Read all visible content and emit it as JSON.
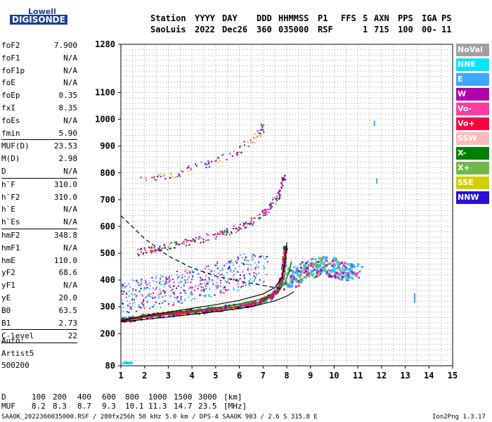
{
  "logo": {
    "line1": "Lowell",
    "line2": "DIGISONDE"
  },
  "header": {
    "labels": [
      "Station",
      "YYYY",
      "DAY",
      "DDD",
      "HHMMSS",
      "P1",
      "FFS",
      "S",
      "AXN",
      "PPS",
      "IGA",
      "PS"
    ],
    "values": [
      "SaoLuis",
      "2022",
      "Dec26",
      "360",
      "035000",
      "RSF",
      "1",
      "715",
      "100",
      "00-",
      "11"
    ]
  },
  "parameters": [
    [
      {
        "name": "foF2",
        "value": "7.900"
      },
      {
        "name": "foF1",
        "value": "N/A"
      },
      {
        "name": "foF1p",
        "value": "N/A"
      },
      {
        "name": "foE",
        "value": "N/A"
      },
      {
        "name": "foEp",
        "value": "0.35"
      },
      {
        "name": "fxI",
        "value": "8.35"
      },
      {
        "name": "foEs",
        "value": "N/A"
      },
      {
        "name": "fmin",
        "value": "5.90"
      }
    ],
    [
      {
        "name": "MUF(D)",
        "value": "23.53"
      },
      {
        "name": "M(D)",
        "value": "2.98"
      },
      {
        "name": "D",
        "value": "N/A"
      }
    ],
    [
      {
        "name": "h`F",
        "value": "310.0"
      },
      {
        "name": "h`F2",
        "value": "310.0"
      },
      {
        "name": "h`E",
        "value": "N/A"
      },
      {
        "name": "h`Es",
        "value": "N/A"
      }
    ],
    [
      {
        "name": "hmF2",
        "value": "348.8"
      },
      {
        "name": "hmF1",
        "value": "N/A"
      },
      {
        "name": "hmE",
        "value": "110.0"
      },
      {
        "name": "yF2",
        "value": "68.6"
      },
      {
        "name": "yF1",
        "value": "N/A"
      },
      {
        "name": "yE",
        "value": "20.0"
      },
      {
        "name": "B0",
        "value": "63.5"
      },
      {
        "name": "B1",
        "value": "2.73"
      }
    ],
    [
      {
        "name": "C-level",
        "value": "22"
      }
    ]
  ],
  "autoscaling": {
    "line1": "Auto:",
    "line2": "Artist5",
    "line3": "500200"
  },
  "legend": [
    {
      "label": "NoVal",
      "color": "#a0a0a0"
    },
    {
      "label": "NNE",
      "color": "#00e5ff"
    },
    {
      "label": "E",
      "color": "#3ba7ff"
    },
    {
      "label": "W",
      "color": "#b000a8"
    },
    {
      "label": "Vo-",
      "color": "#ff3ca0"
    },
    {
      "label": "Vo+",
      "color": "#ff0040"
    },
    {
      "label": "SSW",
      "color": "#ffb8b8"
    },
    {
      "label": "X-",
      "color": "#008000"
    },
    {
      "label": "X+",
      "color": "#6fb84a"
    },
    {
      "label": "SSE",
      "color": "#d0d000"
    },
    {
      "label": "NNW",
      "color": "#2a10d8"
    }
  ],
  "mufTable": {
    "dLabel": "D",
    "mufLabel": "MUF",
    "dValues": [
      "100",
      "200",
      "400",
      "600",
      "800",
      "1000",
      "1500",
      "3000",
      "[km]"
    ],
    "mufValues": [
      "8.2",
      "8.3",
      "8.7",
      "9.3",
      "10.1",
      "11.3",
      "14.7",
      "23.5",
      "[MHz]"
    ]
  },
  "footer": {
    "left": "SAAOK_2022360035000.RSF / 280fx256h 50 kHz 5.0 km / DPS-4 SAAOK 903 / 2.6 S 315.8 E",
    "right": "Ion2Png 1.3.17"
  },
  "chart_data": {
    "type": "scatter",
    "xlim": [
      1,
      15
    ],
    "ylim": [
      80,
      1280
    ],
    "xticks": [
      1,
      2,
      3,
      4,
      5,
      6,
      7,
      8,
      9,
      10,
      11,
      12,
      13,
      14,
      15
    ],
    "yticks": [
      80,
      200,
      300,
      400,
      500,
      600,
      700,
      800,
      900,
      1000,
      1100,
      1280
    ],
    "grid": true,
    "traces": {
      "o_trace": [
        [
          1.0,
          248
        ],
        [
          2.0,
          262
        ],
        [
          3.0,
          272
        ],
        [
          4.0,
          280
        ],
        [
          5.0,
          290
        ],
        [
          6.0,
          302
        ],
        [
          6.8,
          316
        ],
        [
          7.3,
          335
        ],
        [
          7.6,
          360
        ],
        [
          7.8,
          400
        ],
        [
          7.9,
          460
        ],
        [
          7.95,
          520
        ]
      ],
      "x_trace": [
        [
          1.0,
          252
        ],
        [
          2.0,
          266
        ],
        [
          3.0,
          276
        ],
        [
          4.0,
          286
        ],
        [
          5.0,
          296
        ],
        [
          6.0,
          310
        ],
        [
          7.0,
          330
        ],
        [
          7.5,
          350
        ],
        [
          7.9,
          385
        ],
        [
          8.1,
          430
        ],
        [
          8.2,
          470
        ]
      ],
      "model_upper": [
        [
          1.0,
          248
        ],
        [
          2.0,
          266
        ],
        [
          3.0,
          280
        ],
        [
          4.0,
          294
        ],
        [
          5.0,
          308
        ],
        [
          6.0,
          324
        ],
        [
          7.0,
          348
        ],
        [
          7.5,
          372
        ],
        [
          7.8,
          410
        ],
        [
          7.95,
          480
        ],
        [
          8.0,
          540
        ]
      ],
      "model_lower": [
        [
          1.0,
          244
        ],
        [
          3.0,
          262
        ],
        [
          5.0,
          282
        ],
        [
          6.5,
          300
        ],
        [
          7.5,
          322
        ],
        [
          8.0,
          340
        ],
        [
          8.3,
          356
        ]
      ],
      "dashed": [
        [
          1.0,
          640
        ],
        [
          2.0,
          555
        ],
        [
          3.0,
          490
        ],
        [
          4.0,
          445
        ],
        [
          5.0,
          415
        ],
        [
          6.0,
          395
        ],
        [
          7.0,
          380
        ],
        [
          7.9,
          365
        ]
      ],
      "echo_2nd": [
        [
          1.5,
          500
        ],
        [
          2.5,
          515
        ],
        [
          3.5,
          535
        ],
        [
          4.5,
          555
        ],
        [
          5.5,
          580
        ],
        [
          6.5,
          615
        ],
        [
          7.2,
          660
        ],
        [
          7.7,
          720
        ],
        [
          7.9,
          790
        ]
      ],
      "echo_3rd": [
        [
          1.8,
          770
        ],
        [
          3.0,
          790
        ],
        [
          4.0,
          815
        ],
        [
          5.0,
          840
        ],
        [
          6.0,
          885
        ],
        [
          6.8,
          940
        ],
        [
          7.0,
          975
        ]
      ],
      "cloud_main": [
        [
          1.0,
          330
        ],
        [
          1.5,
          340
        ],
        [
          2.0,
          345
        ],
        [
          2.5,
          355
        ],
        [
          3.0,
          365
        ],
        [
          3.5,
          375
        ],
        [
          4.0,
          385
        ],
        [
          4.5,
          395
        ],
        [
          5.0,
          405
        ],
        [
          5.5,
          415
        ],
        [
          6.0,
          430
        ],
        [
          6.5,
          440
        ],
        [
          7.0,
          450
        ]
      ],
      "cloud_right": [
        [
          8.0,
          395
        ],
        [
          8.5,
          420
        ],
        [
          9.0,
          440
        ],
        [
          9.5,
          455
        ],
        [
          10.0,
          445
        ],
        [
          10.5,
          430
        ],
        [
          11.0,
          440
        ]
      ],
      "isolated": [
        [
          13.4,
          325
        ],
        [
          13.4,
          340
        ],
        [
          11.7,
          985
        ],
        [
          11.8,
          770
        ]
      ],
      "bottom_echo": [
        [
          1.1,
          90
        ],
        [
          1.2,
          92
        ],
        [
          1.3,
          90
        ],
        [
          1.4,
          92
        ],
        [
          1.5,
          90
        ]
      ]
    }
  }
}
